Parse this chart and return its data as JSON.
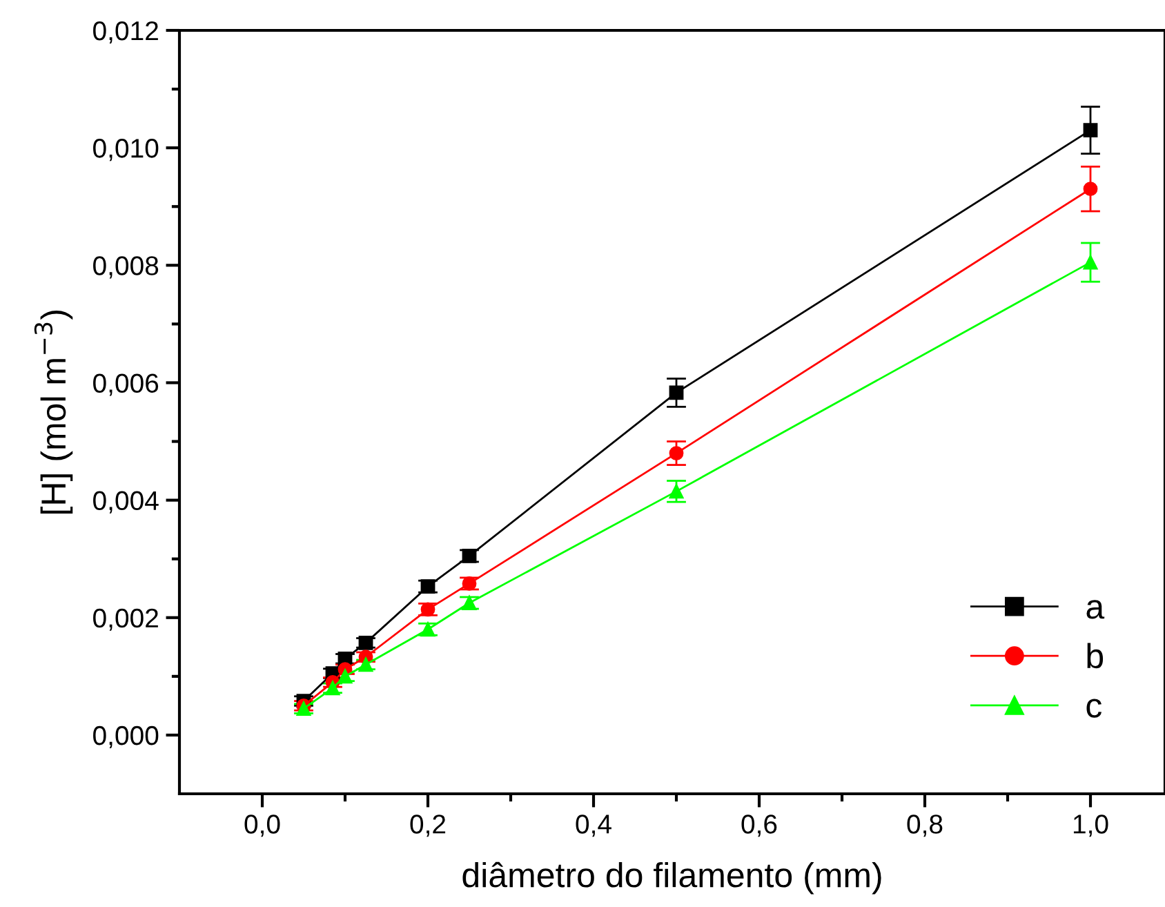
{
  "chart_data": {
    "type": "line",
    "xlabel": "diâmetro do filamento (mm)",
    "ylabel": "[H] (mol m$^{−3}$)",
    "xlim": [
      -0.1,
      1.09
    ],
    "ylim": [
      -0.001,
      0.012
    ],
    "xticks": [
      {
        "value": 0.0,
        "label": "0,0"
      },
      {
        "value": 0.1,
        "label": null
      },
      {
        "value": 0.2,
        "label": "0,2"
      },
      {
        "value": 0.3,
        "label": null
      },
      {
        "value": 0.4,
        "label": "0,4"
      },
      {
        "value": 0.5,
        "label": null
      },
      {
        "value": 0.6,
        "label": "0,6"
      },
      {
        "value": 0.7,
        "label": null
      },
      {
        "value": 0.8,
        "label": "0,8"
      },
      {
        "value": 0.9,
        "label": null
      },
      {
        "value": 1.0,
        "label": "1,0"
      }
    ],
    "yticks": [
      {
        "value": 0.0,
        "label": "0,000"
      },
      {
        "value": 0.001,
        "label": null
      },
      {
        "value": 0.002,
        "label": "0,002"
      },
      {
        "value": 0.003,
        "label": null
      },
      {
        "value": 0.004,
        "label": "0,004"
      },
      {
        "value": 0.005,
        "label": null
      },
      {
        "value": 0.006,
        "label": "0,006"
      },
      {
        "value": 0.007,
        "label": null
      },
      {
        "value": 0.008,
        "label": "0,008"
      },
      {
        "value": 0.009,
        "label": null
      },
      {
        "value": 0.01,
        "label": "0,010"
      },
      {
        "value": 0.011,
        "label": null
      },
      {
        "value": 0.012,
        "label": "0,012"
      }
    ],
    "x": [
      0.05,
      0.085,
      0.1,
      0.125,
      0.2,
      0.25,
      0.5,
      1.0
    ],
    "line_style": "solid",
    "legend": "bottom right",
    "grid": false,
    "series": [
      {
        "name": "a",
        "color": "#000000",
        "marker": "square",
        "values": [
          0.00058,
          0.00105,
          0.0013,
          0.00157,
          0.00253,
          0.00305,
          0.00583,
          0.0103
        ],
        "errors": [
          8e-05,
          8e-05,
          8e-05,
          8e-05,
          0.0001,
          0.0001,
          0.00024,
          0.0004
        ]
      },
      {
        "name": "b",
        "color": "#ff0000",
        "marker": "circle",
        "values": [
          0.0005,
          0.0009,
          0.00112,
          0.00133,
          0.00214,
          0.00258,
          0.0048,
          0.0093
        ],
        "errors": [
          8e-05,
          8e-05,
          8e-05,
          8e-05,
          0.0001,
          0.0001,
          0.0002,
          0.00038
        ]
      },
      {
        "name": "c",
        "color": "#00ff00",
        "marker": "triangle",
        "values": [
          0.00045,
          0.0008,
          0.001,
          0.0012,
          0.0018,
          0.00225,
          0.00415,
          0.00805
        ],
        "errors": [
          8e-05,
          8e-05,
          8e-05,
          8e-05,
          0.0001,
          0.0001,
          0.00018,
          0.00033
        ]
      }
    ]
  }
}
